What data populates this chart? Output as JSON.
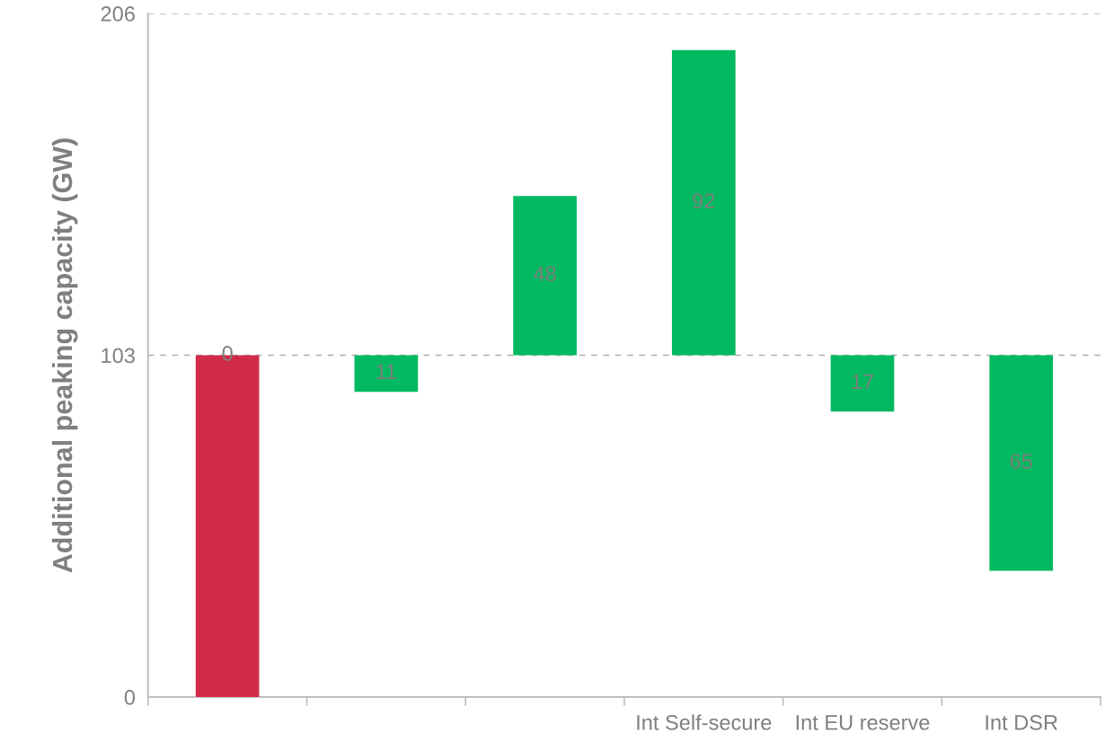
{
  "chart_data": {
    "type": "bar",
    "ylabel": "Additional peaking capacity (GW)",
    "categories": [
      null,
      null,
      null,
      "Int Self-secure",
      "Int EU reserve",
      "Int DSR"
    ],
    "base": [
      0,
      103,
      103,
      103,
      103,
      103
    ],
    "values": [
      103,
      -11,
      48,
      92,
      -17,
      -65
    ],
    "colors": [
      "#d22b48",
      "#00b960",
      "#00b960",
      "#00b960",
      "#00b960",
      "#00b960"
    ],
    "value_labels": [
      null,
      "11",
      "48",
      "92",
      "17",
      "65"
    ],
    "annotations": [
      "0"
    ],
    "ylim": [
      0,
      206
    ],
    "yticks": [
      0,
      103,
      206
    ],
    "grid": "y",
    "legend": false
  }
}
